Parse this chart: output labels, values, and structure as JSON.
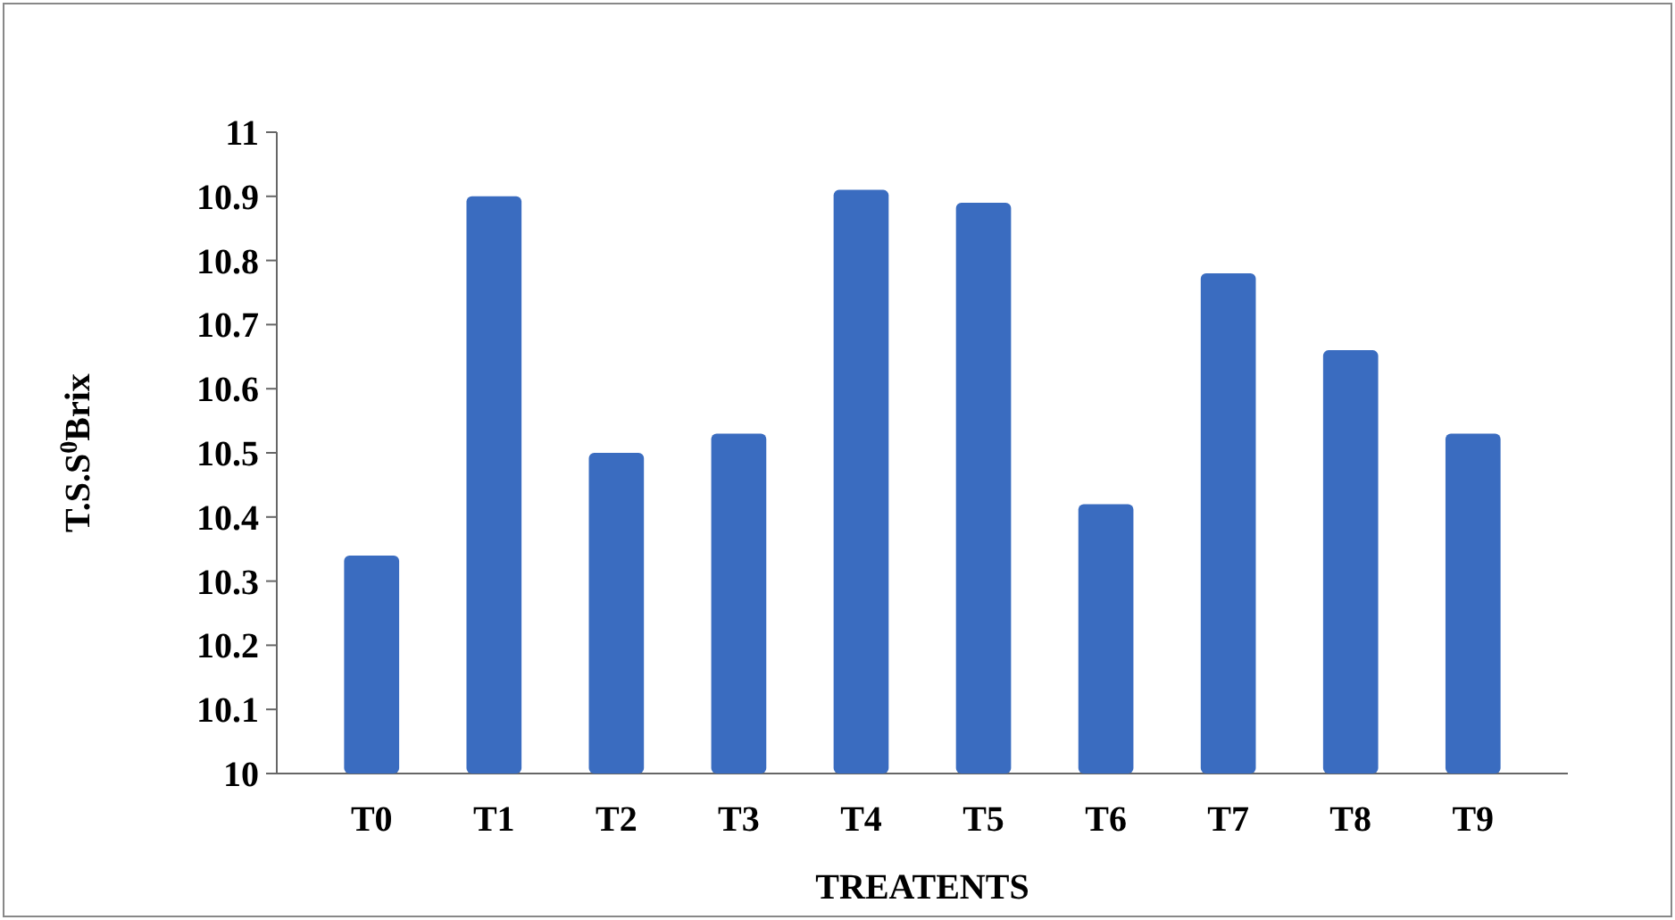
{
  "chart_data": {
    "type": "bar",
    "xlabel": "TREATENTS",
    "ylabel": "T.S.S$^{0}$Brix",
    "categories": [
      "T0",
      "T1",
      "T2",
      "T3",
      "T4",
      "T5",
      "T6",
      "T7",
      "T8",
      "T9"
    ],
    "values": [
      10.34,
      10.9,
      10.5,
      10.53,
      10.91,
      10.89,
      10.42,
      10.78,
      10.66,
      10.53
    ],
    "color": "#3a6cc0",
    "ylim": [
      10,
      11
    ],
    "yticks": [
      10,
      10.1,
      10.2,
      10.3,
      10.4,
      10.5,
      10.6,
      10.7,
      10.8,
      10.9,
      11
    ],
    "grid": false
  }
}
